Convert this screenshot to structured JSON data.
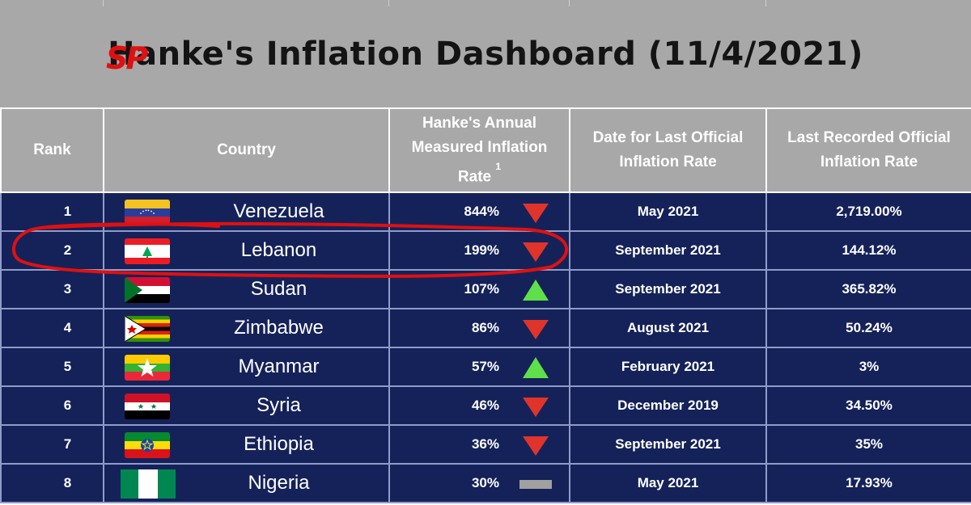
{
  "title": {
    "scribble": "SP",
    "text": "Hanke's Inflation Dashboard (11/4/2021)"
  },
  "columns": {
    "rank": "Rank",
    "country": "Country",
    "hanke": "Hanke's Annual Measured Inflation Rate",
    "hanke_note": "1",
    "date": "Date for Last Official Inflation Rate",
    "official": "Last Recorded Official Inflation Rate"
  },
  "rows": [
    {
      "rank": "1",
      "country": "Venezuela",
      "hanke": "844%",
      "trend": "down",
      "date": "May 2021",
      "official": "2,719.00%",
      "flag": "venezuela-flag"
    },
    {
      "rank": "2",
      "country": "Lebanon",
      "hanke": "199%",
      "trend": "down",
      "date": "September 2021",
      "official": "144.12%",
      "flag": "lebanon-flag"
    },
    {
      "rank": "3",
      "country": "Sudan",
      "hanke": "107%",
      "trend": "up",
      "date": "September 2021",
      "official": "365.82%",
      "flag": "sudan-flag"
    },
    {
      "rank": "4",
      "country": "Zimbabwe",
      "hanke": "86%",
      "trend": "down",
      "date": "August 2021",
      "official": "50.24%",
      "flag": "zimbabwe-flag"
    },
    {
      "rank": "5",
      "country": "Myanmar",
      "hanke": "57%",
      "trend": "up",
      "date": "February 2021",
      "official": "3%",
      "flag": "myanmar-flag"
    },
    {
      "rank": "6",
      "country": "Syria",
      "hanke": "46%",
      "trend": "down",
      "date": "December 2019",
      "official": "34.50%",
      "flag": "syria-flag"
    },
    {
      "rank": "7",
      "country": "Ethiopia",
      "hanke": "36%",
      "trend": "down",
      "date": "September 2021",
      "official": "35%",
      "flag": "ethiopia-flag"
    },
    {
      "rank": "8",
      "country": "Nigeria",
      "hanke": "30%",
      "trend": "flat",
      "date": "May 2021",
      "official": "17.93%",
      "flag": "nigeria-flag"
    }
  ],
  "colors": {
    "header_bg": "#a8a8a8",
    "row_bg": "#152259",
    "down_arrow": "#e0342b",
    "up_arrow": "#5fe04a",
    "flat_marker": "#a0a0a0",
    "annotation": "#e01010"
  },
  "annotation": {
    "highlighted_row": "Lebanon"
  }
}
